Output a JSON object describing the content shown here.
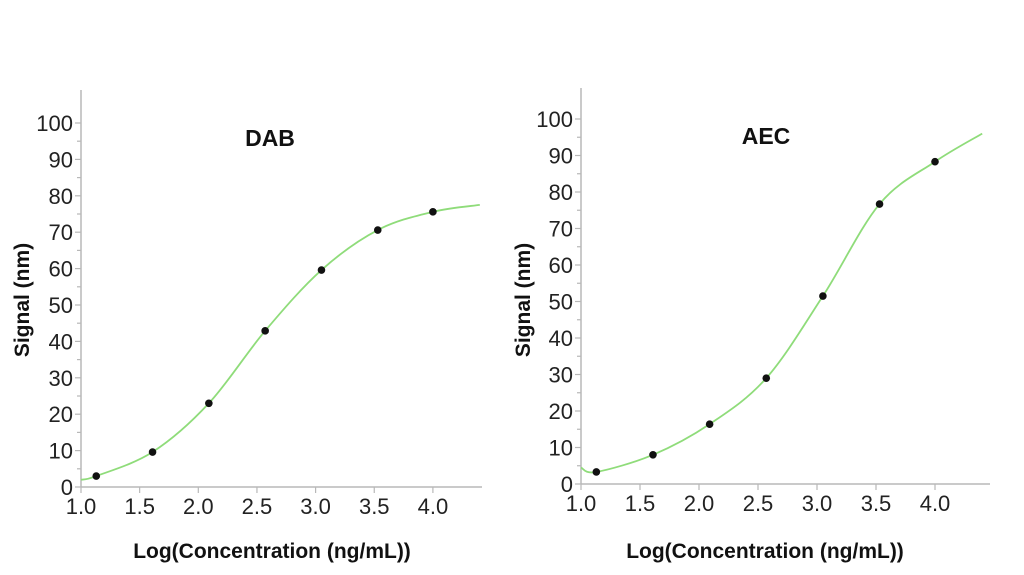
{
  "chart_data": [
    {
      "type": "scatter",
      "title": "DAB",
      "xlabel": "Log(Concentration (ng/mL))",
      "ylabel": "Signal (nm)",
      "xlim": [
        1.0,
        4.4
      ],
      "ylim": [
        0,
        100
      ],
      "xticks": [
        "1.0",
        "1.5",
        "2.0",
        "2.5",
        "3.0",
        "3.5",
        "4.0"
      ],
      "yticks": [
        "0",
        "10",
        "20",
        "30",
        "40",
        "50",
        "60",
        "70",
        "80",
        "90",
        "100"
      ],
      "grid": false,
      "points": {
        "x": [
          1.13,
          1.61,
          2.09,
          2.57,
          3.05,
          3.53,
          4.0
        ],
        "y": [
          3.0,
          9.6,
          23.0,
          42.9,
          59.6,
          70.6,
          75.6
        ]
      },
      "fit_curve": {
        "type": "sigmoid",
        "start": [
          1.0,
          2.0
        ],
        "end": [
          4.4,
          77.5
        ]
      },
      "point_color": "#111111",
      "curve_color": "#8fdc7a"
    },
    {
      "type": "scatter",
      "title": "AEC",
      "xlabel": "Log(Concentration (ng/mL))",
      "ylabel": "Signal (nm)",
      "xlim": [
        1.0,
        4.4
      ],
      "ylim": [
        0,
        100
      ],
      "xticks": [
        "1.0",
        "1.5",
        "2.0",
        "2.5",
        "3.0",
        "3.5",
        "4.0"
      ],
      "yticks": [
        "0",
        "10",
        "20",
        "30",
        "40",
        "50",
        "60",
        "70",
        "80",
        "90",
        "100"
      ],
      "grid": false,
      "points": {
        "x": [
          1.13,
          1.61,
          2.09,
          2.57,
          3.05,
          3.53,
          4.0
        ],
        "y": [
          3.3,
          8.0,
          16.4,
          29.0,
          51.5,
          76.7,
          88.3
        ]
      },
      "fit_curve": {
        "type": "sigmoid",
        "start": [
          1.0,
          4.5
        ],
        "end": [
          4.4,
          96.0
        ]
      },
      "point_color": "#111111",
      "curve_color": "#8fdc7a"
    }
  ]
}
